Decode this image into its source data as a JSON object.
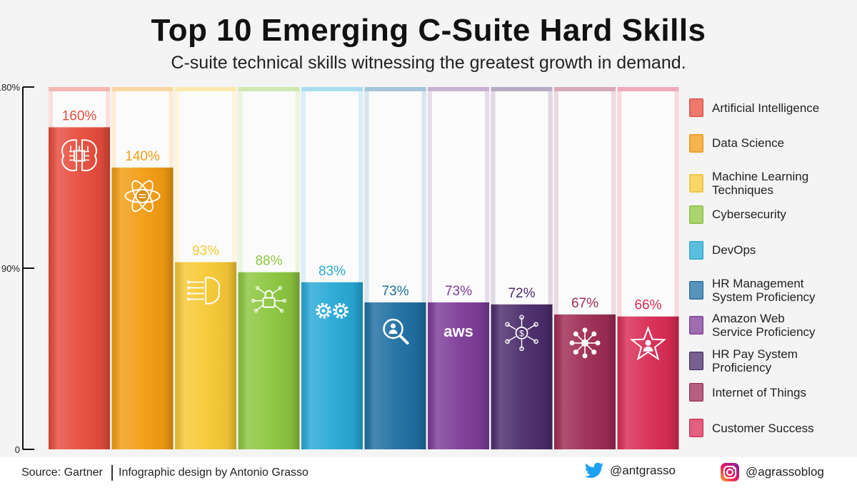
{
  "chart_data": {
    "type": "bar",
    "title": "Top 10 Emerging C-Suite Hard Skills",
    "subtitle": "C-suite technical skills witnessing the greatest growth in demand.",
    "ylim": [
      0,
      180
    ],
    "yticks": [
      {
        "value": 0,
        "label": "0"
      },
      {
        "value": 90,
        "label": "90%"
      },
      {
        "value": 180,
        "label": "180%"
      }
    ],
    "categories": [
      "Artificial Intelligence",
      "Data Science",
      "Machine Learning\nTechniques",
      "Cybersecurity",
      "DevOps",
      "HR Management\nSystem Proficiency",
      "Amazon Web\nService Proficiency",
      "HR Pay System\nProficiency",
      "Internet of Things",
      "Customer Success"
    ],
    "values": [
      160,
      140,
      93,
      88,
      83,
      73,
      73,
      72,
      67,
      66
    ],
    "labels": [
      "160%",
      "140%",
      "93%",
      "88%",
      "83%",
      "73%",
      "73%",
      "72%",
      "67%",
      "66%"
    ],
    "colors": [
      "#e74c3c",
      "#f39c12",
      "#f7c934",
      "#8cc63f",
      "#27a9d6",
      "#1f6fa3",
      "#7d3c98",
      "#4b2c6b",
      "#9e2b54",
      "#d92b54"
    ],
    "icons": [
      "brain-chip-icon",
      "atom-database-icon",
      "brain-circuit-icon",
      "lock-circuit-icon",
      "gears-icon",
      "search-people-icon",
      "aws-logo-icon",
      "dollar-network-icon",
      "iot-network-icon",
      "star-person-icon"
    ],
    "icon_texts": [
      "",
      "",
      "",
      "",
      "",
      "",
      "aws",
      "",
      "",
      ""
    ]
  },
  "footer": {
    "source": "Source: Gartner",
    "credit": "Infographic design by Antonio Grasso",
    "twitter": "@antgrasso",
    "instagram": "@agrassoblog",
    "twitter_color": "#1da1f2"
  }
}
